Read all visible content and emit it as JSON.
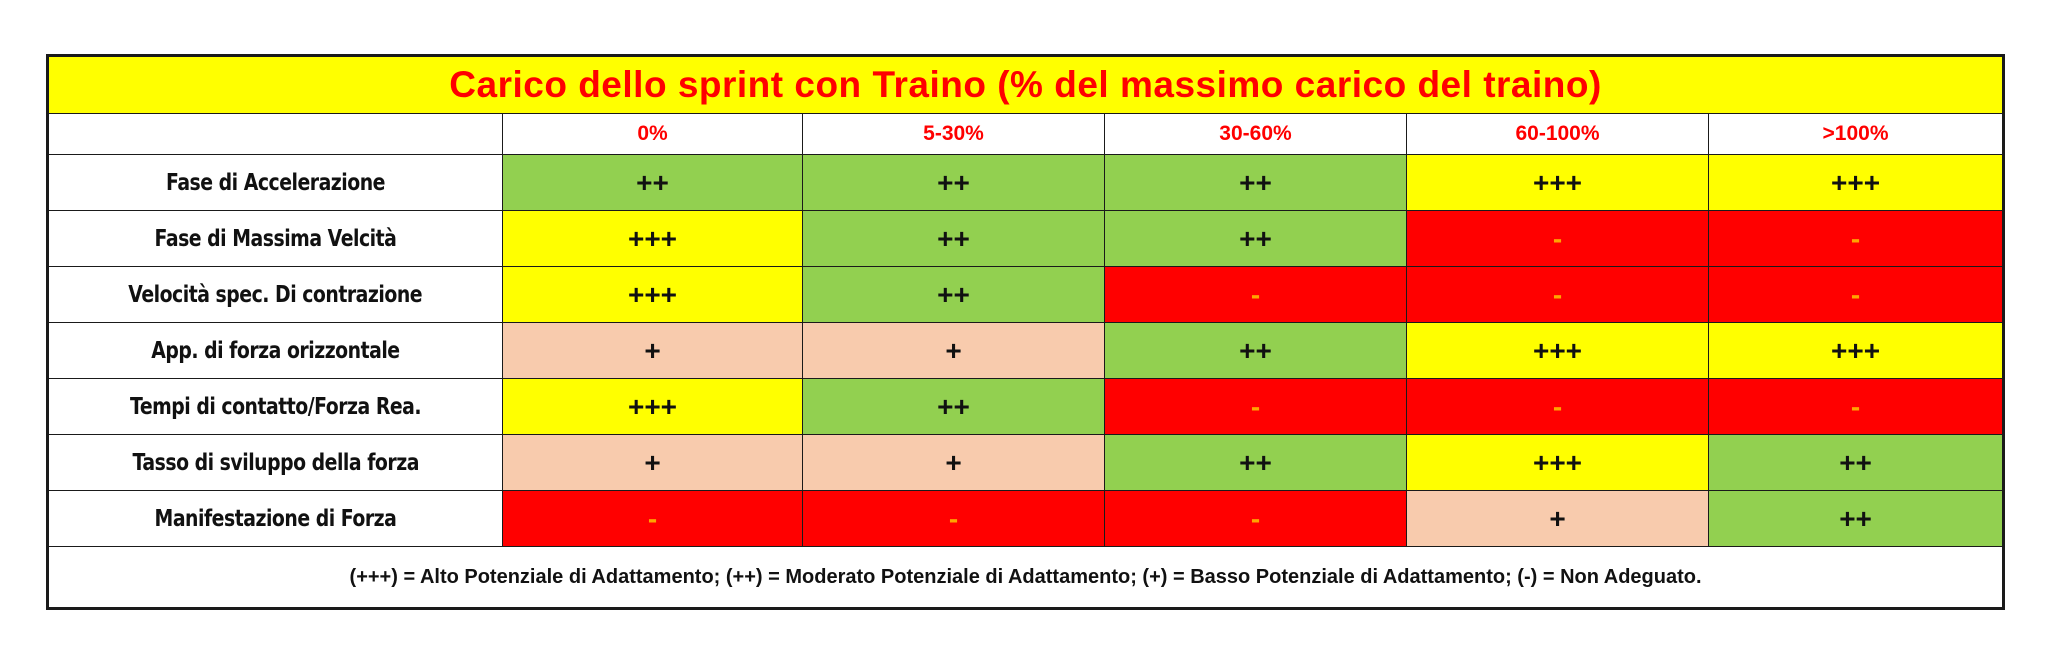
{
  "table": {
    "title": "Carico dello sprint con Traino (% del massimo carico del traino)",
    "columns": [
      "0%",
      "5-30%",
      "30-60%",
      "60-100%",
      ">100%"
    ],
    "rows": [
      {
        "label": "Fase di Accelerazione",
        "cells": [
          {
            "value": "++",
            "color": "green"
          },
          {
            "value": "++",
            "color": "green"
          },
          {
            "value": "++",
            "color": "green"
          },
          {
            "value": "+++",
            "color": "yellow"
          },
          {
            "value": "+++",
            "color": "yellow"
          }
        ]
      },
      {
        "label": "Fase di Massima Velcità",
        "cells": [
          {
            "value": "+++",
            "color": "yellow"
          },
          {
            "value": "++",
            "color": "green"
          },
          {
            "value": "++",
            "color": "green"
          },
          {
            "value": "-",
            "color": "red"
          },
          {
            "value": "-",
            "color": "red"
          }
        ]
      },
      {
        "label": "Velocità spec. Di contrazione",
        "cells": [
          {
            "value": "+++",
            "color": "yellow"
          },
          {
            "value": "++",
            "color": "green"
          },
          {
            "value": "-",
            "color": "red"
          },
          {
            "value": "-",
            "color": "red"
          },
          {
            "value": "-",
            "color": "red"
          }
        ]
      },
      {
        "label": "App. di forza orizzontale",
        "cells": [
          {
            "value": "+",
            "color": "peach"
          },
          {
            "value": "+",
            "color": "peach"
          },
          {
            "value": "++",
            "color": "green"
          },
          {
            "value": "+++",
            "color": "yellow"
          },
          {
            "value": "+++",
            "color": "yellow"
          }
        ]
      },
      {
        "label": "Tempi di contatto/Forza Rea.",
        "cells": [
          {
            "value": "+++",
            "color": "yellow"
          },
          {
            "value": "++",
            "color": "green"
          },
          {
            "value": "-",
            "color": "red"
          },
          {
            "value": "-",
            "color": "red"
          },
          {
            "value": "-",
            "color": "red"
          }
        ]
      },
      {
        "label": "Tasso di sviluppo della forza",
        "cells": [
          {
            "value": "+",
            "color": "peach"
          },
          {
            "value": "+",
            "color": "peach"
          },
          {
            "value": "++",
            "color": "green"
          },
          {
            "value": "+++",
            "color": "yellow"
          },
          {
            "value": "++",
            "color": "green"
          }
        ]
      },
      {
        "label": "Manifestazione di Forza",
        "cells": [
          {
            "value": "-",
            "color": "red"
          },
          {
            "value": "-",
            "color": "red"
          },
          {
            "value": "-",
            "color": "red"
          },
          {
            "value": "+",
            "color": "peach"
          },
          {
            "value": "++",
            "color": "green"
          }
        ]
      }
    ],
    "legend": "(+++) = Alto Potenziale di Adattamento; (++) = Moderato Potenziale di Adattamento; (+) = Basso Potenziale di Adattamento; (-) = Non Adeguato."
  },
  "colors": {
    "green": "#92d050",
    "yellow": "#ffff00",
    "red": "#ff0000",
    "peach": "#f8cbad",
    "title_text": "#ff0000"
  }
}
